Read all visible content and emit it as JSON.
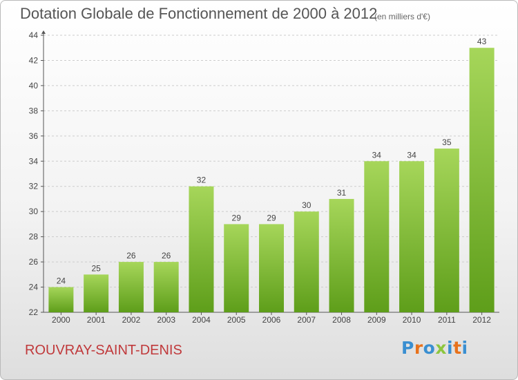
{
  "title": "Dotation Globale de Fonctionnement de 2000 à 2012",
  "subtitle": "(en milliers d'€)",
  "commune": "ROUVRAY-SAINT-DENIS",
  "logo": {
    "text": "Proxiti",
    "letter_colors": [
      "#3a8fd1",
      "#e8721c",
      "#3a8fd1",
      "#8cc63f",
      "#3a8fd1",
      "#e8721c",
      "#3a8fd1"
    ]
  },
  "colors": {
    "bar_top": "#a6d65a",
    "bar_bottom": "#5e9e1a",
    "axis": "#555555",
    "grid": "#cccccc",
    "label": "#444444"
  },
  "chart_data": {
    "type": "bar",
    "categories": [
      "2000",
      "2001",
      "2002",
      "2003",
      "2004",
      "2005",
      "2006",
      "2007",
      "2008",
      "2009",
      "2010",
      "2011",
      "2012"
    ],
    "values": [
      24,
      25,
      26,
      26,
      32,
      29,
      29,
      30,
      31,
      34,
      34,
      35,
      43
    ],
    "ylim": [
      22,
      44
    ],
    "yticks": [
      22,
      24,
      26,
      28,
      30,
      32,
      34,
      36,
      38,
      40,
      42,
      44
    ],
    "grid": true
  }
}
